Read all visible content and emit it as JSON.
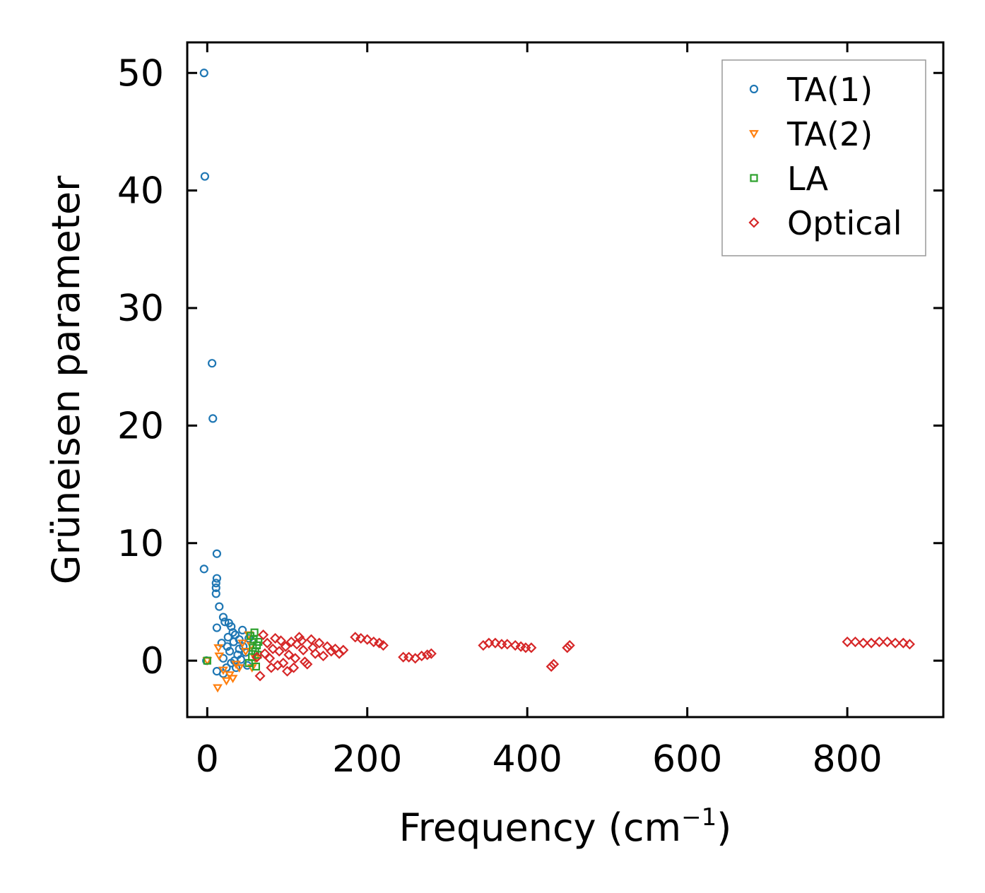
{
  "chart_data": {
    "type": "scatter",
    "xlabel": "Frequency (cm",
    "xlabel_sup": "−1",
    "xlabel_close": ")",
    "ylabel": "Grüneisen parameter",
    "xlim": [
      -25,
      920
    ],
    "ylim": [
      -4.8,
      52.6
    ],
    "xticks": [
      0,
      200,
      400,
      600,
      800
    ],
    "yticks": [
      0,
      10,
      20,
      30,
      40,
      50
    ],
    "legend_position": "top-right",
    "series": [
      {
        "name": "TA(1)",
        "marker": "circle",
        "color": "#1f77b4",
        "points": [
          [
            -4,
            50
          ],
          [
            -3,
            41.2
          ],
          [
            6,
            25.3
          ],
          [
            7,
            20.6
          ],
          [
            12,
            9.1
          ],
          [
            -4,
            7.8
          ],
          [
            12,
            7
          ],
          [
            11,
            6.6
          ],
          [
            11,
            6.2
          ],
          [
            11,
            5.7
          ],
          [
            15,
            4.6
          ],
          [
            20,
            3.7
          ],
          [
            22,
            3.3
          ],
          [
            27,
            3.2
          ],
          [
            12,
            2.8
          ],
          [
            30,
            2.9
          ],
          [
            35,
            2.2
          ],
          [
            40,
            1.8
          ],
          [
            18,
            1.5
          ],
          [
            25,
            1.2
          ],
          [
            33,
            1.6
          ],
          [
            45,
            1.2
          ],
          [
            28,
            0.8
          ],
          [
            38,
            0.5
          ],
          [
            48,
            0.7
          ],
          [
            20,
            0.2
          ],
          [
            30,
            -0.2
          ],
          [
            42,
            0.1
          ],
          [
            50,
            -0.4
          ],
          [
            36,
            -0.6
          ],
          [
            12,
            -0.9
          ],
          [
            24,
            -0.6
          ],
          [
            -1,
            0
          ],
          [
            32,
            2.4
          ],
          [
            44,
            2.6
          ],
          [
            26,
            2
          ],
          [
            40,
            1
          ],
          [
            20,
            -1.1
          ],
          [
            34,
            0
          ],
          [
            52,
            1.9
          ]
        ]
      },
      {
        "name": "TA(2)",
        "marker": "triangle-down",
        "color": "#ff7f0e",
        "points": [
          [
            0,
            0
          ],
          [
            13,
            -2.3
          ],
          [
            15,
            0.4
          ],
          [
            24,
            -1.7
          ],
          [
            32,
            -1.5
          ],
          [
            20,
            -0.8
          ],
          [
            40,
            -0.6
          ],
          [
            48,
            0.8
          ],
          [
            55,
            1.3
          ],
          [
            52,
            2.2
          ],
          [
            44,
            1.5
          ],
          [
            36,
            -0.3
          ],
          [
            28,
            -1.2
          ],
          [
            60,
            0.2
          ],
          [
            56,
            -0.6
          ],
          [
            14,
            1.1
          ]
        ]
      },
      {
        "name": "LA",
        "marker": "square",
        "color": "#2ca02c",
        "points": [
          [
            0,
            0
          ],
          [
            58,
            1.8
          ],
          [
            60,
            0.8
          ],
          [
            62,
            1.3
          ],
          [
            56,
            0.3
          ],
          [
            54,
            2.1
          ],
          [
            64,
            1.6
          ],
          [
            52,
            -0.2
          ],
          [
            59,
            2.4
          ],
          [
            61,
            -0.5
          ],
          [
            57,
            1.1
          ],
          [
            63,
            0.5
          ]
        ]
      },
      {
        "name": "Optical",
        "marker": "diamond",
        "color": "#d62728",
        "points": [
          [
            62,
            0.3
          ],
          [
            66,
            -1.3
          ],
          [
            70,
            2.2
          ],
          [
            75,
            1.5
          ],
          [
            80,
            -0.6
          ],
          [
            85,
            1.9
          ],
          [
            90,
            0.8
          ],
          [
            95,
            -0.2
          ],
          [
            100,
            -0.9
          ],
          [
            105,
            1.6
          ],
          [
            110,
            0.2
          ],
          [
            115,
            2
          ],
          [
            120,
            0.9
          ],
          [
            125,
            -0.3
          ],
          [
            130,
            1.8
          ],
          [
            135,
            0.6
          ],
          [
            140,
            1.5
          ],
          [
            145,
            0.4
          ],
          [
            150,
            1.2
          ],
          [
            155,
            0.8
          ],
          [
            160,
            1
          ],
          [
            165,
            0.6
          ],
          [
            170,
            0.9
          ],
          [
            72,
            0.6
          ],
          [
            82,
            1
          ],
          [
            92,
            1.7
          ],
          [
            102,
            0.5
          ],
          [
            112,
            1.4
          ],
          [
            122,
            -0.1
          ],
          [
            132,
            1.1
          ],
          [
            78,
            0.2
          ],
          [
            88,
            -0.4
          ],
          [
            98,
            1.2
          ],
          [
            108,
            -0.6
          ],
          [
            118,
            1.7
          ],
          [
            185,
            2
          ],
          [
            192,
            1.9
          ],
          [
            200,
            1.8
          ],
          [
            208,
            1.6
          ],
          [
            215,
            1.5
          ],
          [
            220,
            1.3
          ],
          [
            245,
            0.3
          ],
          [
            252,
            0.3
          ],
          [
            260,
            0.2
          ],
          [
            268,
            0.4
          ],
          [
            275,
            0.5
          ],
          [
            280,
            0.6
          ],
          [
            345,
            1.3
          ],
          [
            352,
            1.5
          ],
          [
            360,
            1.5
          ],
          [
            368,
            1.4
          ],
          [
            375,
            1.4
          ],
          [
            385,
            1.3
          ],
          [
            392,
            1.2
          ],
          [
            398,
            1.1
          ],
          [
            405,
            1.1
          ],
          [
            430,
            -0.5
          ],
          [
            433,
            -0.3
          ],
          [
            450,
            1.1
          ],
          [
            453,
            1.3
          ],
          [
            800,
            1.6
          ],
          [
            810,
            1.6
          ],
          [
            820,
            1.5
          ],
          [
            830,
            1.5
          ],
          [
            840,
            1.6
          ],
          [
            850,
            1.6
          ],
          [
            860,
            1.5
          ],
          [
            870,
            1.5
          ],
          [
            878,
            1.4
          ]
        ]
      }
    ]
  }
}
